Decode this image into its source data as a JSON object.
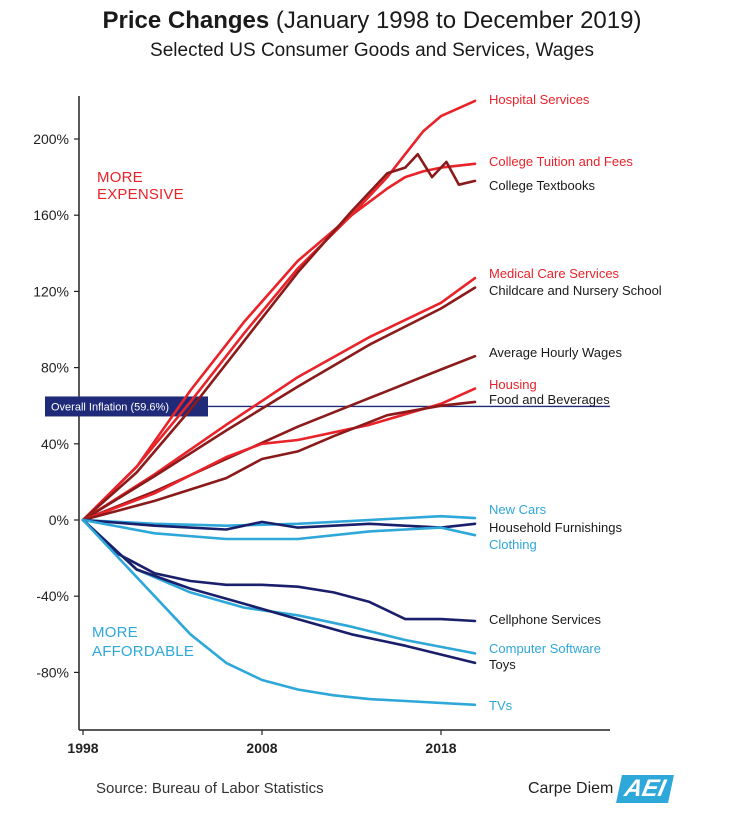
{
  "title": {
    "main": "Price Changes",
    "rest": " (January 1998 to December 2019)"
  },
  "subtitle": "Selected US Consumer Goods and Services, Wages",
  "footer": {
    "source": "Source: Bureau of Labor Statistics",
    "brand": "Carpe Diem",
    "logo": "AEI"
  },
  "chart_data": {
    "type": "line",
    "x_tick_labels": [
      "1998",
      "2008",
      "2018"
    ],
    "x_ticks": [
      1998,
      2008,
      2018
    ],
    "xlim": [
      1998,
      2028
    ],
    "y_tick_labels": [
      "200%",
      "160%",
      "120%",
      "80%",
      "40%",
      "0%",
      "-40%",
      "-80%"
    ],
    "y_ticks": [
      200,
      160,
      120,
      80,
      40,
      0,
      -40,
      -80
    ],
    "ylim": [
      -110,
      225
    ],
    "grid": false,
    "annotations": {
      "more_expensive": [
        "MORE",
        "EXPENSIVE"
      ],
      "more_affordable": [
        "MORE",
        "AFFORDABLE"
      ]
    },
    "reference_line": {
      "label": "Overall Inflation (59.6%)",
      "value": 59.6
    },
    "colors": {
      "red": "#e8232a",
      "dark_red": "#8b1a1a",
      "light_blue": "#2ea7d9",
      "navy": "#1a1f6b",
      "reference": "#1f2a78"
    },
    "series": [
      {
        "name": "Hospital Services",
        "color": "#e8232a",
        "x": [
          1998,
          2001,
          2004,
          2007,
          2010,
          2013,
          2015,
          2016,
          2017,
          2018,
          2019.9
        ],
        "values": [
          0,
          28,
          62,
          98,
          132,
          160,
          180,
          192,
          204,
          212,
          220
        ]
      },
      {
        "name": "College Tuition and Fees",
        "color": "#e8232a",
        "x": [
          1998,
          2001,
          2004,
          2007,
          2010,
          2013,
          2015,
          2016,
          2017,
          2018,
          2019.9
        ],
        "values": [
          0,
          28,
          68,
          104,
          136,
          160,
          174,
          180,
          183,
          185,
          187
        ]
      },
      {
        "name": "College Textbooks",
        "color": "#8b1a1a",
        "x": [
          1998,
          2001,
          2004,
          2007,
          2010,
          2013,
          2015,
          2016,
          2016.7,
          2017.5,
          2018.3,
          2019,
          2019.9
        ],
        "values": [
          0,
          25,
          58,
          94,
          130,
          162,
          182,
          185,
          192,
          180,
          188,
          176,
          178
        ]
      },
      {
        "name": "Medical Care Services",
        "color": "#e8232a",
        "x": [
          1998,
          2002,
          2006,
          2010,
          2014,
          2018,
          2019.9
        ],
        "values": [
          0,
          24,
          50,
          75,
          96,
          114,
          127
        ]
      },
      {
        "name": "Childcare and Nursery School",
        "color": "#8b1a1a",
        "x": [
          1998,
          2002,
          2006,
          2010,
          2014,
          2018,
          2019.9
        ],
        "values": [
          0,
          23,
          47,
          70,
          92,
          111,
          122
        ]
      },
      {
        "name": "Average Hourly Wages",
        "color": "#8b1a1a",
        "x": [
          1998,
          2002,
          2006,
          2010,
          2014,
          2018,
          2019.9
        ],
        "values": [
          0,
          15,
          32,
          49,
          64,
          79,
          86
        ]
      },
      {
        "name": "Housing",
        "color": "#e8232a",
        "x": [
          1998,
          2002,
          2006,
          2008,
          2010,
          2014,
          2018,
          2019.9
        ],
        "values": [
          0,
          14,
          33,
          40,
          42,
          50,
          61,
          69
        ]
      },
      {
        "name": "Food and Beverages",
        "color": "#8b1a1a",
        "x": [
          1998,
          2002,
          2006,
          2008,
          2010,
          2012,
          2015,
          2018,
          2019.9
        ],
        "values": [
          0,
          10,
          22,
          32,
          36,
          44,
          55,
          60,
          62
        ]
      },
      {
        "name": "New Cars",
        "color": "#2ea7d9",
        "x": [
          1998,
          2002,
          2006,
          2010,
          2014,
          2018,
          2019.9
        ],
        "values": [
          0,
          -2,
          -3,
          -2,
          0,
          2,
          1
        ]
      },
      {
        "name": "Household Furnishings",
        "color": "#1a1f6b",
        "x": [
          1998,
          2002,
          2006,
          2008,
          2010,
          2014,
          2018,
          2019.9
        ],
        "values": [
          0,
          -3,
          -5,
          -1,
          -4,
          -2,
          -4,
          -2
        ]
      },
      {
        "name": "Clothing",
        "color": "#2ea7d9",
        "x": [
          1998,
          2002,
          2006,
          2010,
          2014,
          2016,
          2018,
          2019.9
        ],
        "values": [
          0,
          -7,
          -10,
          -10,
          -6,
          -5,
          -4,
          -8
        ]
      },
      {
        "name": "Cellphone Services",
        "color": "#1a1f6b",
        "x": [
          1998,
          2000,
          2002,
          2004,
          2006,
          2008,
          2010,
          2012,
          2014,
          2016,
          2018,
          2019.9
        ],
        "values": [
          0,
          -18,
          -28,
          -32,
          -34,
          -34,
          -35,
          -38,
          -43,
          -52,
          -52,
          -53
        ]
      },
      {
        "name": "Computer Software",
        "color": "#2ea7d9",
        "x": [
          1998,
          2001,
          2004,
          2007,
          2010,
          2013,
          2016,
          2019.9
        ],
        "values": [
          0,
          -26,
          -38,
          -46,
          -50,
          -56,
          -63,
          -70
        ]
      },
      {
        "name": "Toys",
        "color": "#1a1f6b",
        "x": [
          1998,
          2001,
          2004,
          2007,
          2010,
          2013,
          2016,
          2019.9
        ],
        "values": [
          0,
          -26,
          -36,
          -44,
          -52,
          -60,
          -66,
          -75
        ]
      },
      {
        "name": "TVs",
        "color": "#2ea7d9",
        "x": [
          1998,
          2000,
          2002,
          2004,
          2006,
          2008,
          2010,
          2012,
          2014,
          2016,
          2019.9
        ],
        "values": [
          0,
          -20,
          -40,
          -60,
          -75,
          -84,
          -89,
          -92,
          -94,
          -95,
          -97
        ]
      }
    ]
  }
}
